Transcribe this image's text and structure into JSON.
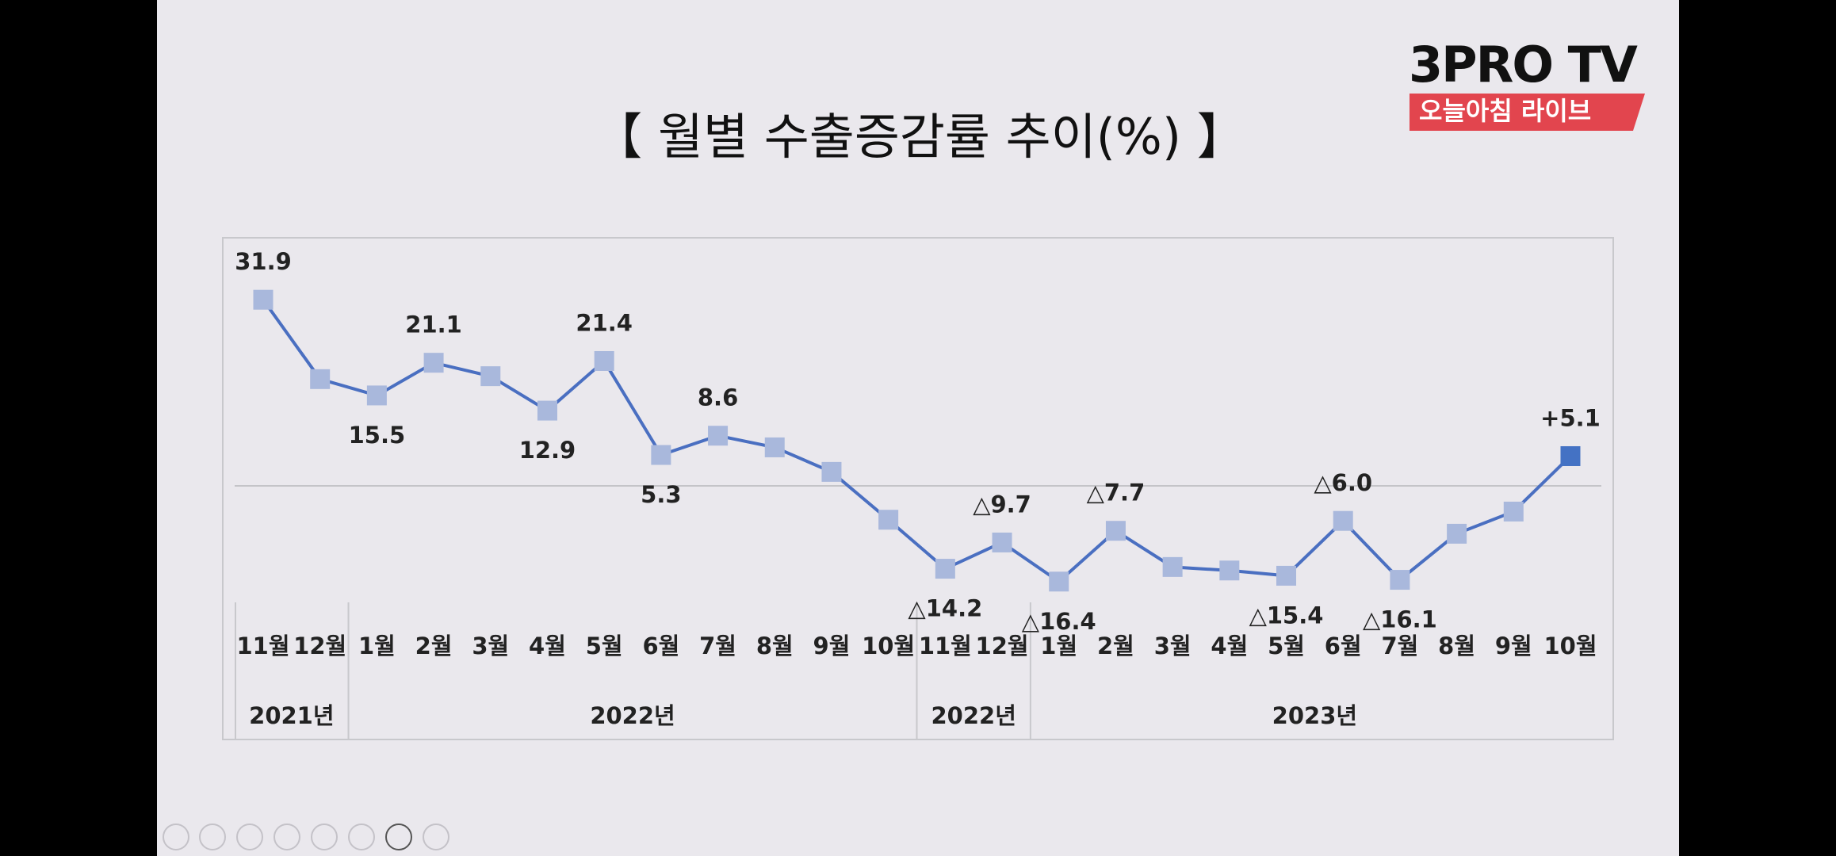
{
  "logo": {
    "brand": "3PRO TV",
    "tagline": "오늘아침 라이브"
  },
  "chart_data": {
    "type": "line",
    "title": "【 월별 수출증감률 추이(%) 】",
    "category_groups": [
      {
        "label": "2021년",
        "categories": [
          "11월",
          "12월"
        ]
      },
      {
        "label": "2022년",
        "categories": [
          "1월",
          "2월",
          "3월",
          "4월",
          "5월",
          "6월",
          "7월",
          "8월",
          "9월",
          "10월"
        ]
      },
      {
        "label": "2022년",
        "categories": [
          "11월",
          "12월"
        ]
      },
      {
        "label": "2023년",
        "categories": [
          "1월",
          "2월",
          "3월",
          "4월",
          "5월",
          "6월",
          "7월",
          "8월",
          "9월",
          "10월"
        ]
      }
    ],
    "values": [
      31.9,
      18.3,
      15.5,
      21.1,
      18.8,
      12.9,
      21.4,
      5.3,
      8.6,
      6.6,
      2.4,
      -5.8,
      -14.2,
      -9.7,
      -16.4,
      -7.7,
      -13.9,
      -14.5,
      -15.4,
      -6.0,
      -16.1,
      -8.2,
      -4.4,
      5.1
    ],
    "value_labels": [
      "31.9",
      null,
      "15.5",
      "21.1",
      null,
      "12.9",
      "21.4",
      "5.3",
      "8.6",
      null,
      null,
      null,
      "△14.2",
      "△9.7",
      "△16.4",
      "△7.7",
      null,
      null,
      "△15.4",
      "△6.0",
      "△16.1",
      null,
      null,
      "+5.1"
    ],
    "color": "#4a6fc1",
    "marker_color": "#a9b8dc",
    "last_marker_color": "#4472c4",
    "ylim": [
      -22,
      36
    ]
  }
}
